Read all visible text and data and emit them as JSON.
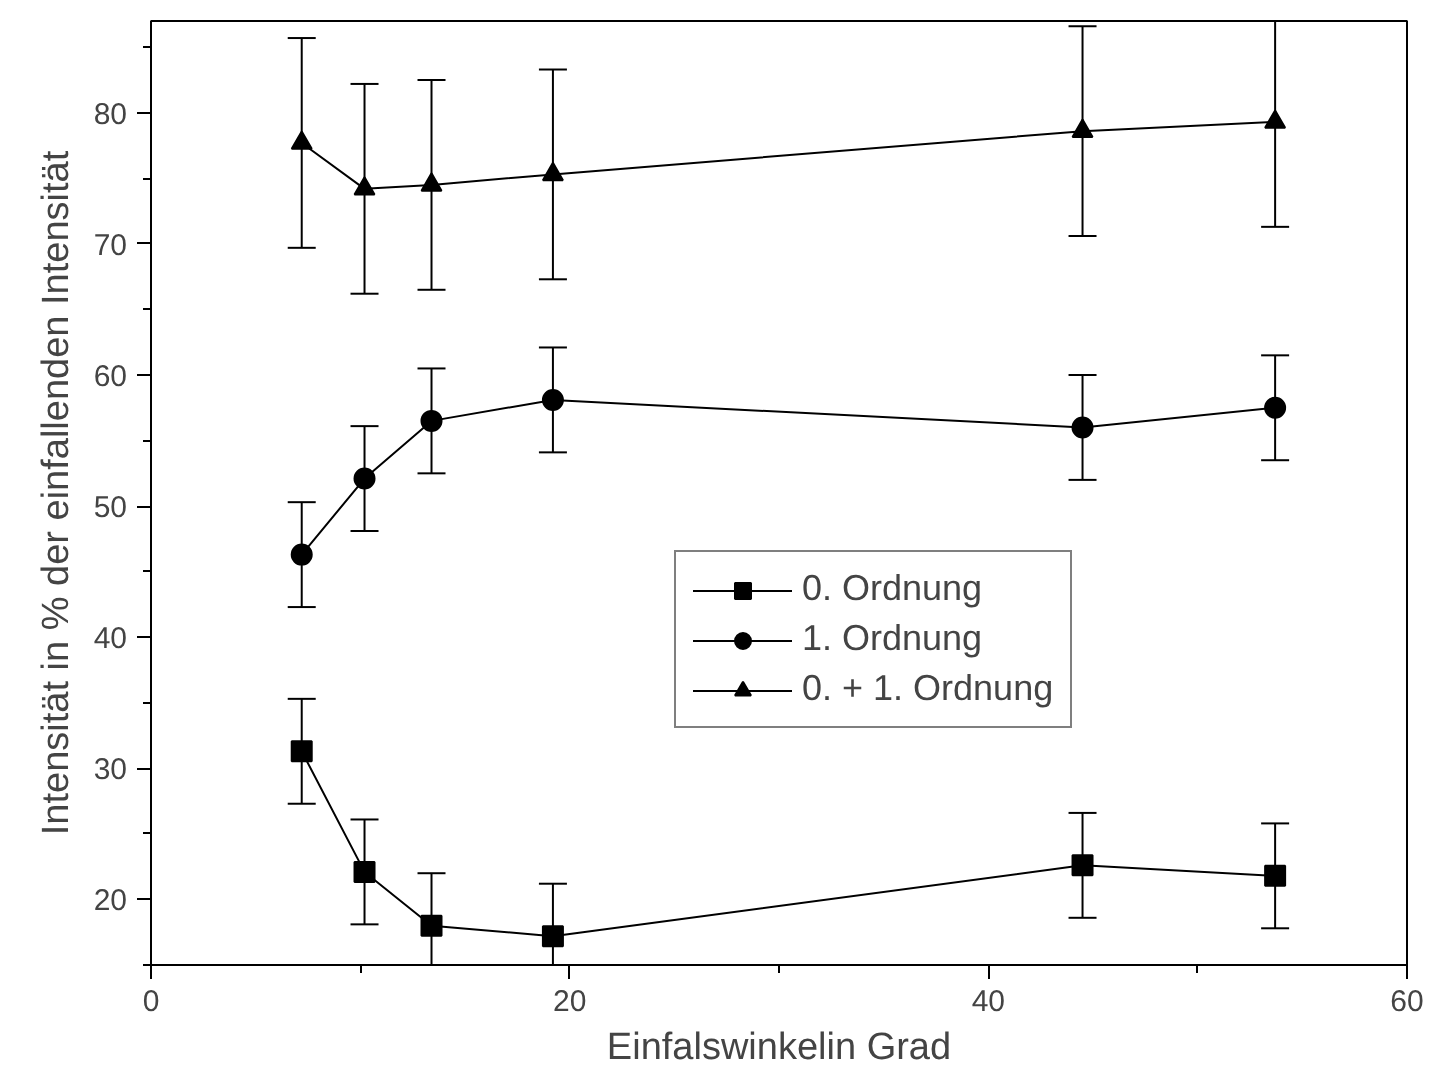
{
  "chart_data": {
    "type": "line",
    "xlabel": "Einfalswinkelin Grad",
    "ylabel": "Intensität in % der einfallenden Intensität",
    "x": [
      7.2,
      10.2,
      13.4,
      19.2,
      44.5,
      53.7
    ],
    "xlim": [
      0,
      60
    ],
    "ylim": [
      15,
      87
    ],
    "xticks": [
      0,
      {
        "value": 10,
        "label": null
      },
      20,
      {
        "value": 30,
        "label": null
      },
      40,
      {
        "value": 50,
        "label": null
      },
      60
    ],
    "yticks": [
      {
        "value": 15,
        "label": null
      },
      20,
      {
        "value": 25,
        "label": null
      },
      30,
      {
        "value": 35,
        "label": null
      },
      40,
      {
        "value": 45,
        "label": null
      },
      50,
      {
        "value": 55,
        "label": null
      },
      60,
      {
        "value": 65,
        "label": null
      },
      70,
      {
        "value": 75,
        "label": null
      },
      80,
      {
        "value": 85,
        "label": null
      }
    ],
    "grid": false,
    "legend": "right",
    "line_style": "solid",
    "series": [
      {
        "name": "0. Ordnung",
        "color": "#000000",
        "marker": "square",
        "values": [
          31.3,
          22.1,
          18.0,
          17.2,
          22.6,
          21.8
        ],
        "errors": [
          4,
          4,
          4,
          4,
          4,
          4
        ]
      },
      {
        "name": "1. Ordnung",
        "color": "#000000",
        "marker": "circle",
        "values": [
          46.3,
          52.1,
          56.5,
          58.1,
          56.0,
          57.5
        ],
        "errors": [
          4,
          4,
          4,
          4,
          4,
          4
        ]
      },
      {
        "name": "0. + 1. Ordnung",
        "color": "#000000",
        "marker": "triangle",
        "values": [
          77.7,
          74.2,
          74.5,
          75.3,
          78.6,
          79.3
        ],
        "errors": [
          8,
          8,
          8,
          8,
          8,
          8
        ]
      }
    ]
  }
}
